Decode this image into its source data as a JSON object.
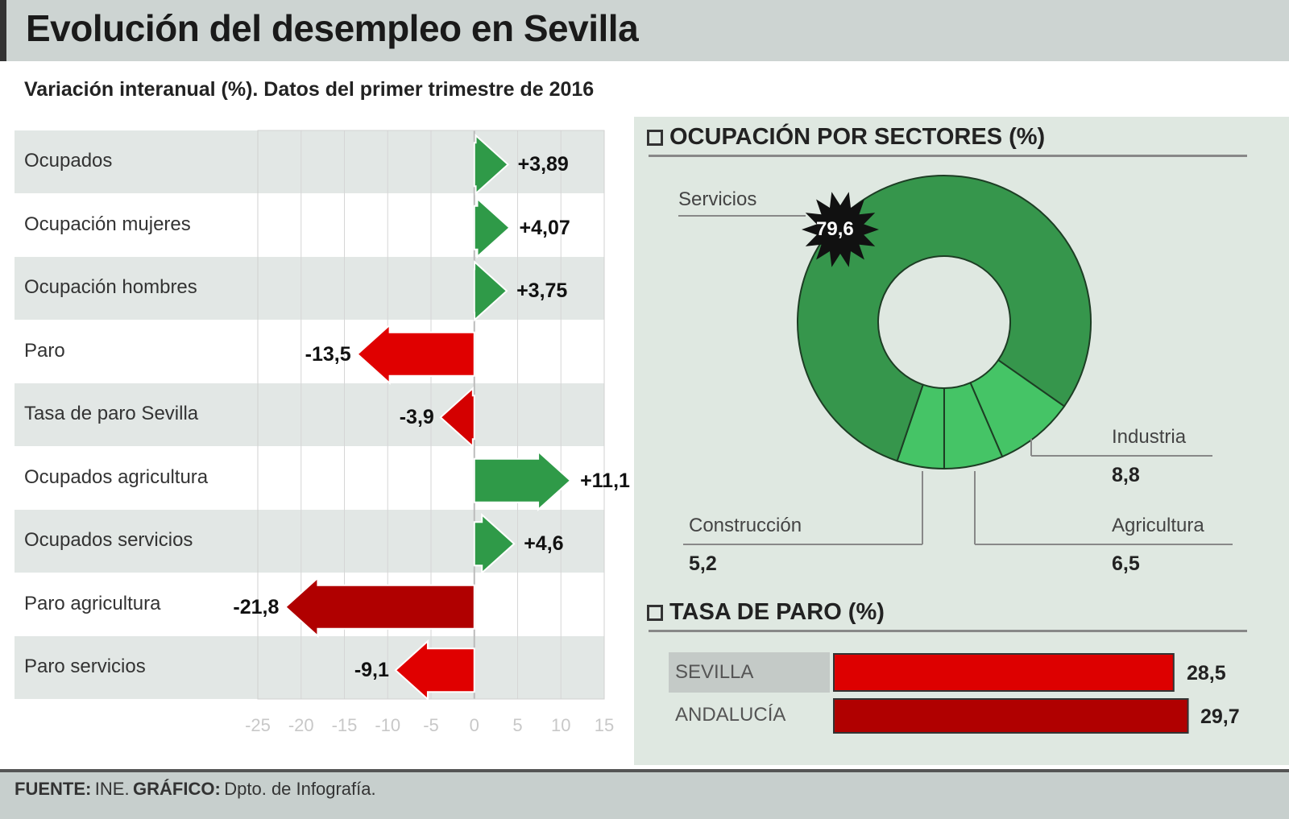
{
  "title": "Evolución del desempleo en Sevilla",
  "subtitle": "Variación interanual (%). Datos del primer trimestre de 2016",
  "chart_data": [
    {
      "type": "bar",
      "orientation": "horizontal",
      "categories": [
        "Ocupados",
        "Ocupación mujeres",
        "Ocupación hombres",
        "Paro",
        "Tasa de paro Sevilla",
        "Ocupados agricultura",
        "Ocupados servicios",
        "Paro agricultura",
        "Paro servicios"
      ],
      "values": [
        3.89,
        4.07,
        3.75,
        -13.5,
        -3.9,
        11.1,
        4.6,
        -21.8,
        -9.1
      ],
      "value_labels": [
        "+3,89",
        "+4,07",
        "+3,75",
        "-13,5",
        "-3,9",
        "+11,1",
        "+4,6",
        "-21,8",
        "-9,1"
      ],
      "bar_colors": [
        "#2f9a48",
        "#2f9a48",
        "#2f9a48",
        "#e00000",
        "#d40000",
        "#2f9a48",
        "#2f9a48",
        "#b00000",
        "#e00000"
      ],
      "xlim": [
        -25,
        15
      ],
      "xticks": [
        "-25",
        "-20",
        "-15",
        "-10",
        "-5",
        "0",
        "5",
        "10",
        "15"
      ],
      "grid": true
    },
    {
      "type": "pie",
      "title": "OCUPACIÓN POR SECTORES (%)",
      "donut": true,
      "slices": [
        {
          "name": "Servicios",
          "value": 79.6,
          "label": "79,6",
          "color": "#36964c"
        },
        {
          "name": "Industria",
          "value": 8.8,
          "label": "8,8",
          "color": "#45c466"
        },
        {
          "name": "Agricultura",
          "value": 6.5,
          "label": "6,5",
          "color": "#45c466"
        },
        {
          "name": "Construcción",
          "value": 5.2,
          "label": "5,2",
          "color": "#45c466"
        }
      ]
    },
    {
      "type": "bar",
      "orientation": "horizontal",
      "title": "TASA DE PARO (%)",
      "categories": [
        "SEVILLA",
        "ANDALUCÍA"
      ],
      "values": [
        28.5,
        29.7
      ],
      "value_labels": [
        "28,5",
        "29,7"
      ],
      "bar_colors": [
        "#dd0000",
        "#b00000"
      ]
    }
  ],
  "footer": {
    "source_label": "FUENTE:",
    "source": "INE.",
    "graphic_label": "GRÁFICO:",
    "graphic": "Dpto. de Infografía."
  }
}
